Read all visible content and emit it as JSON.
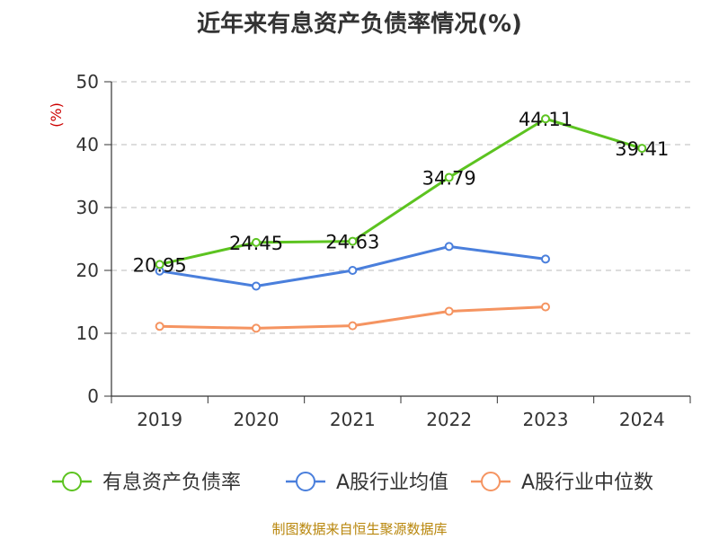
{
  "chart_data": {
    "type": "line",
    "title": "近年来有息资产负债率情况(%)",
    "ylabel": "(%)",
    "xlabel": "",
    "categories": [
      "2019",
      "2020",
      "2021",
      "2022",
      "2023",
      "2024"
    ],
    "ylim": [
      0,
      50
    ],
    "yticks": [
      0,
      10,
      20,
      30,
      40,
      50
    ],
    "grid": true,
    "legend_position": "bottom",
    "series": [
      {
        "name": "有息资产负债率",
        "color": "#5cc320",
        "values": [
          20.95,
          24.45,
          24.63,
          34.79,
          44.11,
          39.41
        ],
        "labels": [
          "20.95",
          "24.45",
          "24.63",
          "34.79",
          "44.11",
          "39.41"
        ]
      },
      {
        "name": "A股行业均值",
        "color": "#4a7fdc",
        "values": [
          19.9,
          17.5,
          20.0,
          23.8,
          21.8,
          null
        ]
      },
      {
        "name": "A股行业中位数",
        "color": "#f59461",
        "values": [
          11.1,
          10.8,
          11.2,
          13.5,
          14.2,
          null
        ]
      }
    ]
  },
  "footer": {
    "source": "制图数据来自恒生聚源数据库"
  }
}
